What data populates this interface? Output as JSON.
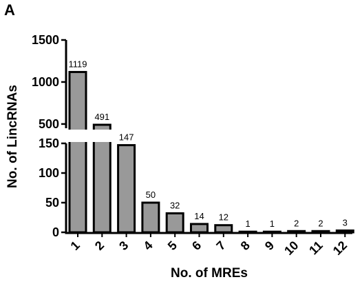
{
  "panel_label": "A",
  "colors": {
    "bar_fill": "#999999",
    "bar_stroke": "#000000",
    "axis": "#000000",
    "background": "#ffffff"
  },
  "chart_data": {
    "type": "bar",
    "title": "",
    "xlabel": "No. of MREs",
    "ylabel": "No. of LincRNAs",
    "categories": [
      "1",
      "2",
      "3",
      "4",
      "5",
      "6",
      "7",
      "8",
      "9",
      "10",
      "11",
      "12"
    ],
    "values": [
      1119,
      491,
      147,
      50,
      32,
      14,
      12,
      1,
      1,
      2,
      2,
      3
    ],
    "data_labels": [
      "1119",
      "491",
      "147",
      "50",
      "32",
      "14",
      "12",
      "1",
      "1",
      "2",
      "2",
      "3"
    ],
    "y_axis_break": true,
    "y_segments": [
      {
        "range": [
          0,
          150
        ],
        "ticks": [
          "0",
          "50",
          "100",
          "150"
        ],
        "tick_values": [
          0,
          50,
          100,
          150
        ]
      },
      {
        "range": [
          450,
          1500
        ],
        "ticks": [
          "500",
          "1000",
          "1500"
        ],
        "tick_values": [
          500,
          1000,
          1500
        ]
      }
    ],
    "grid": false,
    "legend": "none"
  }
}
